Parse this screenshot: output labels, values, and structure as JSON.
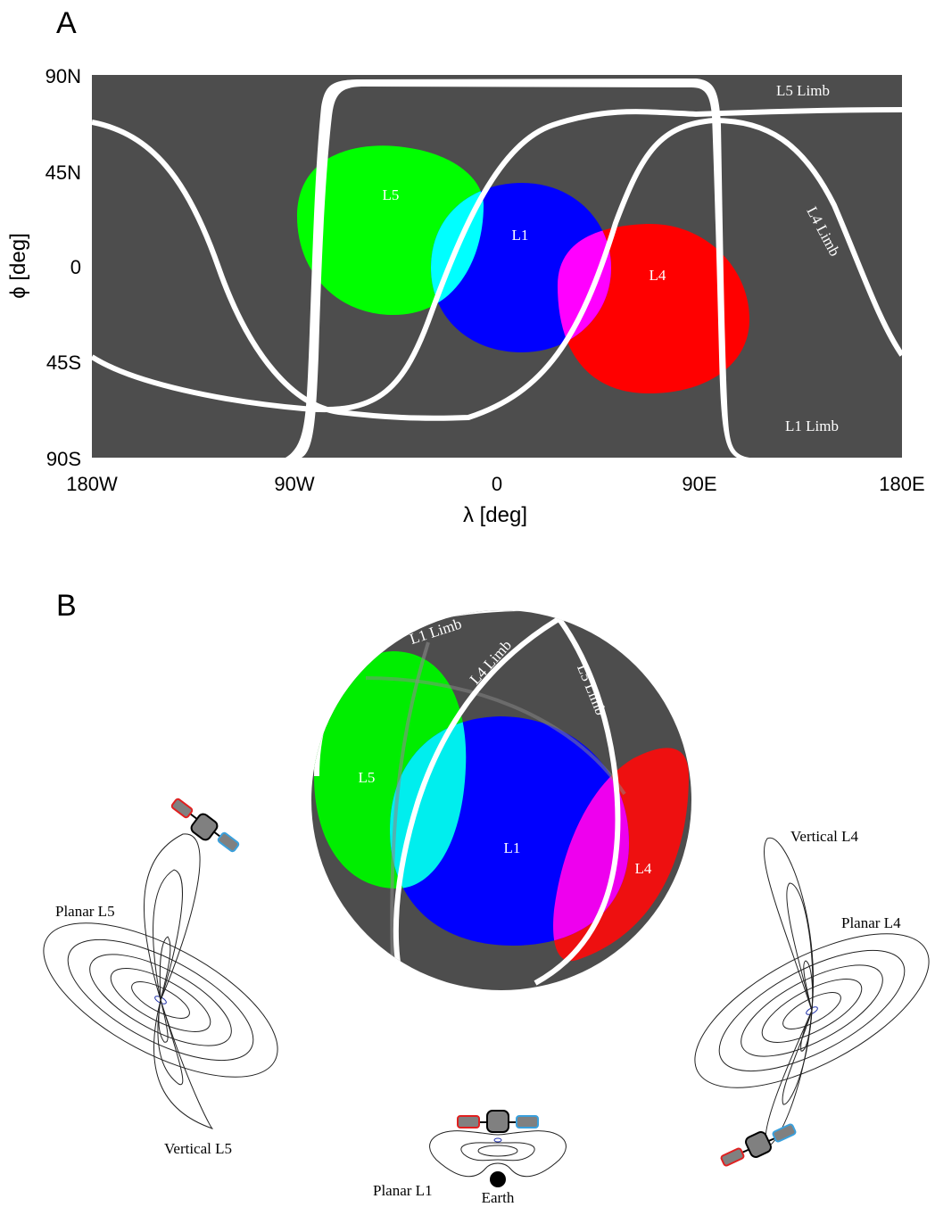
{
  "panel_a": {
    "letter": "A",
    "x_ticks": [
      "180W",
      "90W",
      "0",
      "90E",
      "180E"
    ],
    "y_ticks": [
      "90N",
      "45N",
      "0",
      "45S",
      "90S"
    ],
    "x_label": "λ [deg]",
    "y_label": "ϕ [deg]",
    "regions": {
      "l5": "L5",
      "l1": "L1",
      "l4": "L4"
    },
    "limbs": {
      "l5": "L5 Limb",
      "l4": "L4 Limb",
      "l1": "L1 Limb"
    }
  },
  "panel_b": {
    "letter": "B",
    "globe": {
      "regions": {
        "l5": "L5",
        "l1": "L1",
        "l4": "L4"
      },
      "limbs": {
        "l1": "L1 Limb",
        "l4": "L4 Limb",
        "l5": "L5 Limb"
      }
    },
    "orbits": {
      "planar_l5": "Planar L5",
      "vertical_l5": "Vertical L5",
      "vertical_l4": "Vertical L4",
      "planar_l4": "Planar L4",
      "planar_l1": "Planar L1",
      "earth": "Earth"
    }
  },
  "colors": {
    "map_background": "#4d4d4d",
    "l5_region": "#00ff00",
    "l1_region": "#0000ff",
    "l4_region": "#ff0000",
    "overlap_l5_l1": "#00ffff",
    "overlap_l1_l4": "#ff00ff",
    "limb": "#ffffff",
    "panel_red": "#e02020",
    "panel_blue": "#3aa0dc",
    "sat_body": "#808080"
  }
}
